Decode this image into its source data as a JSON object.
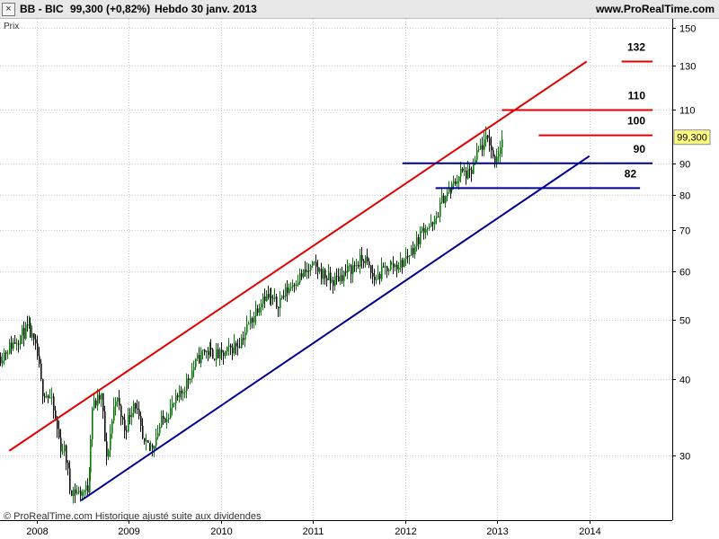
{
  "header": {
    "instrument": "BB - BIC",
    "last": "99,300 (+0,82%)",
    "period": "Hebdo  30 janv. 2013",
    "site": "www.ProRealTime.com",
    "close_glyph": "×"
  },
  "footer": {
    "copyright": "© ProRealTime.com Historique ajusté suite aux dividendes"
  },
  "chart_data": {
    "type": "candlestick",
    "title": "BB - BIC",
    "subtitle": "Hebdo  30 janv. 2013",
    "ylabel": "Prix",
    "yscale": "log",
    "ylim": [
      23.5,
      155
    ],
    "xlim": [
      2007.6,
      2014.9
    ],
    "y_ticks": [
      30,
      40,
      50,
      60,
      70,
      80,
      90,
      110,
      130,
      150
    ],
    "y_tick_labels": [
      "30",
      "40",
      "50",
      "60",
      "70",
      "80",
      "90",
      "110",
      "130",
      "150"
    ],
    "x_ticks": [
      2008,
      2009,
      2010,
      2011,
      2012,
      2013,
      2014
    ],
    "x_tick_labels": [
      "2008",
      "2009",
      "2010",
      "2011",
      "2012",
      "2013",
      "2014"
    ],
    "grid": true,
    "current_price": {
      "value": 99.3,
      "label": "99,300"
    },
    "price_path": [
      [
        2007.6,
        43.5
      ],
      [
        2007.75,
        46
      ],
      [
        2007.9,
        48.5
      ],
      [
        2008.0,
        44
      ],
      [
        2008.05,
        38.5
      ],
      [
        2008.15,
        37
      ],
      [
        2008.25,
        31
      ],
      [
        2008.3,
        30.5
      ],
      [
        2008.35,
        26.5
      ],
      [
        2008.45,
        26
      ],
      [
        2008.55,
        26.5
      ],
      [
        2008.6,
        36
      ],
      [
        2008.7,
        37.5
      ],
      [
        2008.75,
        29
      ],
      [
        2008.85,
        37.5
      ],
      [
        2008.95,
        33
      ],
      [
        2009.05,
        37
      ],
      [
        2009.15,
        31
      ],
      [
        2009.25,
        31
      ],
      [
        2009.35,
        34
      ],
      [
        2009.55,
        37.5
      ],
      [
        2009.7,
        42
      ],
      [
        2009.8,
        44.5
      ],
      [
        2010.0,
        43.5
      ],
      [
        2010.2,
        46
      ],
      [
        2010.35,
        51
      ],
      [
        2010.45,
        55
      ],
      [
        2010.6,
        53
      ],
      [
        2010.8,
        58
      ],
      [
        2011.0,
        61
      ],
      [
        2011.2,
        57.5
      ],
      [
        2011.4,
        60.5
      ],
      [
        2011.55,
        63
      ],
      [
        2011.65,
        58
      ],
      [
        2011.8,
        61
      ],
      [
        2011.95,
        61.5
      ],
      [
        2012.1,
        66
      ],
      [
        2012.2,
        71
      ],
      [
        2012.3,
        71
      ],
      [
        2012.4,
        79
      ],
      [
        2012.5,
        82
      ],
      [
        2012.6,
        87
      ],
      [
        2012.7,
        86
      ],
      [
        2012.8,
        95
      ],
      [
        2012.9,
        99
      ],
      [
        2012.95,
        91
      ],
      [
        2013.0,
        94
      ],
      [
        2013.05,
        99.3
      ]
    ],
    "trendlines": [
      {
        "color": "#e00000",
        "from": [
          2007.7,
          30.5
        ],
        "to": [
          2013.97,
          132
        ]
      },
      {
        "color": "#000090",
        "from": [
          2008.48,
          25.3
        ],
        "to": [
          2014.0,
          92.5
        ]
      }
    ],
    "levels": [
      {
        "value": 132,
        "label": "132",
        "color": "#e00000",
        "from": 2014.35,
        "to": 2015.65
      },
      {
        "value": 110,
        "label": "110",
        "color": "#e00000",
        "from": 2013.05,
        "to": 2015.2
      },
      {
        "value": 100,
        "label": "100",
        "color": "#e00000",
        "from": 2013.45,
        "to": 2015.15
      },
      {
        "value": 90,
        "label": "90",
        "color": "#000090",
        "from": 2011.97,
        "to": 2015.0
      },
      {
        "value": 82,
        "label": "82",
        "color": "#000090",
        "from": 2012.33,
        "to": 2014.55
      }
    ]
  }
}
